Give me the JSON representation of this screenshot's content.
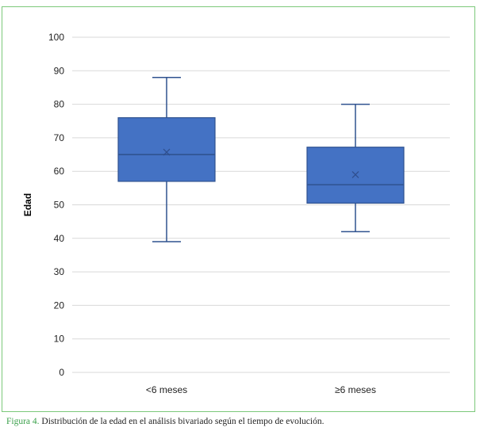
{
  "chart_data": {
    "type": "box",
    "ylabel": "Edad",
    "xlabel": "",
    "ylim": [
      0,
      100
    ],
    "yticks": [
      "0",
      "10",
      "20",
      "30",
      "40",
      "50",
      "60",
      "70",
      "80",
      "90",
      "100"
    ],
    "categories": [
      "<6 meses",
      "≥6 meses"
    ],
    "boxes": [
      {
        "name": "<6 meses",
        "min": 39,
        "q1": 57,
        "median": 65,
        "mean": 65.7,
        "q3": 76,
        "max": 88
      },
      {
        "name": "≥6 meses",
        "min": 42,
        "q1": 50.5,
        "median": 56,
        "mean": 59,
        "q3": 67.2,
        "max": 80
      }
    ],
    "colors": {
      "box_fill": "#4472c4",
      "box_stroke": "#2f528f",
      "grid": "#d9d9d9"
    }
  },
  "caption": {
    "lead": "Figura 4.",
    "text": " Distribución de la edad en el análisis bivariado según el tiempo de evolución."
  }
}
